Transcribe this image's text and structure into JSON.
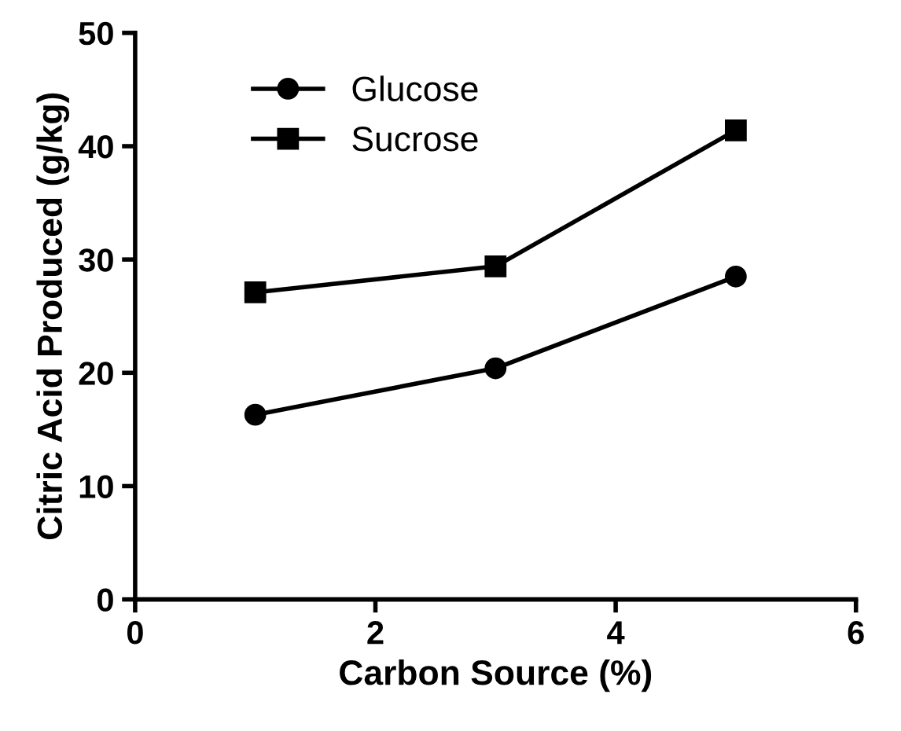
{
  "chart_data": {
    "type": "line",
    "xlabel": "Carbon Source (%)",
    "ylabel": "Citric Acid Produced (g/kg)",
    "x": [
      1,
      3,
      5
    ],
    "series": [
      {
        "name": "Glucose",
        "color": "#000000",
        "marker": "circle",
        "values": [
          16.3,
          20.4,
          28.5
        ]
      },
      {
        "name": "Sucrose",
        "color": "#000000",
        "marker": "square",
        "values": [
          27.1,
          29.4,
          41.4
        ]
      }
    ],
    "xlim": [
      0,
      6
    ],
    "xticks": [
      0,
      2,
      4,
      6
    ],
    "ylim": [
      0,
      50
    ],
    "yticks": [
      0,
      10,
      20,
      30,
      40,
      50
    ],
    "grid": false,
    "legend": "top left",
    "line_style": "solid"
  }
}
